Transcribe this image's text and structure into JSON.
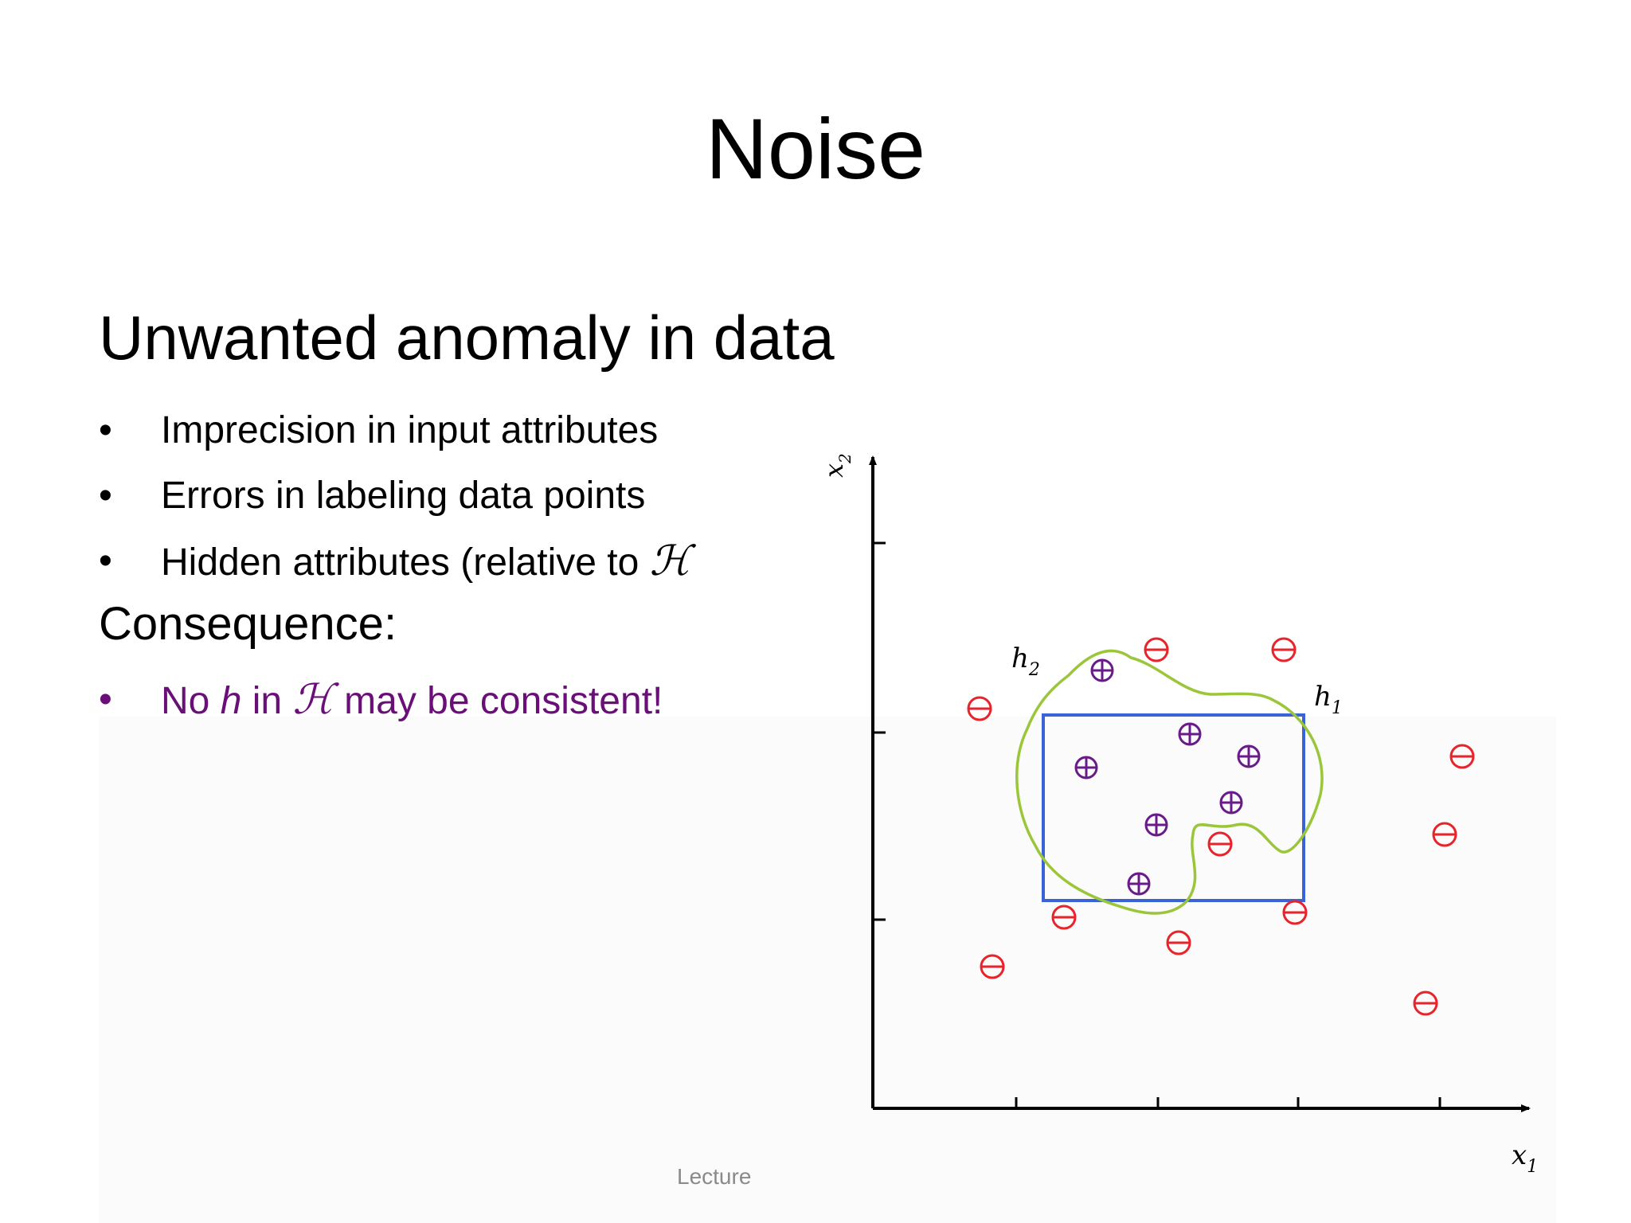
{
  "slide": {
    "title": "Noise",
    "subtitle": "Unwanted anomaly in data",
    "bullets": [
      {
        "text": "Imprecision in input attributes",
        "suffix": ""
      },
      {
        "text": "Errors in labeling data points",
        "suffix": ""
      },
      {
        "text": "Hidden attributes (relative to ",
        "suffix": "ℋ"
      }
    ],
    "consequence_heading": "Consequence:",
    "consequence_bullet": {
      "part1": "No ",
      "h": "h",
      "part2": " in ",
      "H": "ℋ",
      "part3": " may be consistent!"
    },
    "bullet_char": "•",
    "footer": "Lecture"
  },
  "diagram": {
    "x_axis_label": "x",
    "x_axis_sub": "1",
    "y_axis_label": "x",
    "y_axis_sub": "2",
    "h1_label": "h",
    "h1_sub": "1",
    "h2_label": "h",
    "h2_sub": "2",
    "positive_symbol": "⊕",
    "negative_symbol": "⊖",
    "colors": {
      "positive": "#6a1b8a",
      "negative": "#e8232a",
      "h1": "#3a63d8",
      "h2": "#9cc63a",
      "axis": "#000000"
    }
  }
}
